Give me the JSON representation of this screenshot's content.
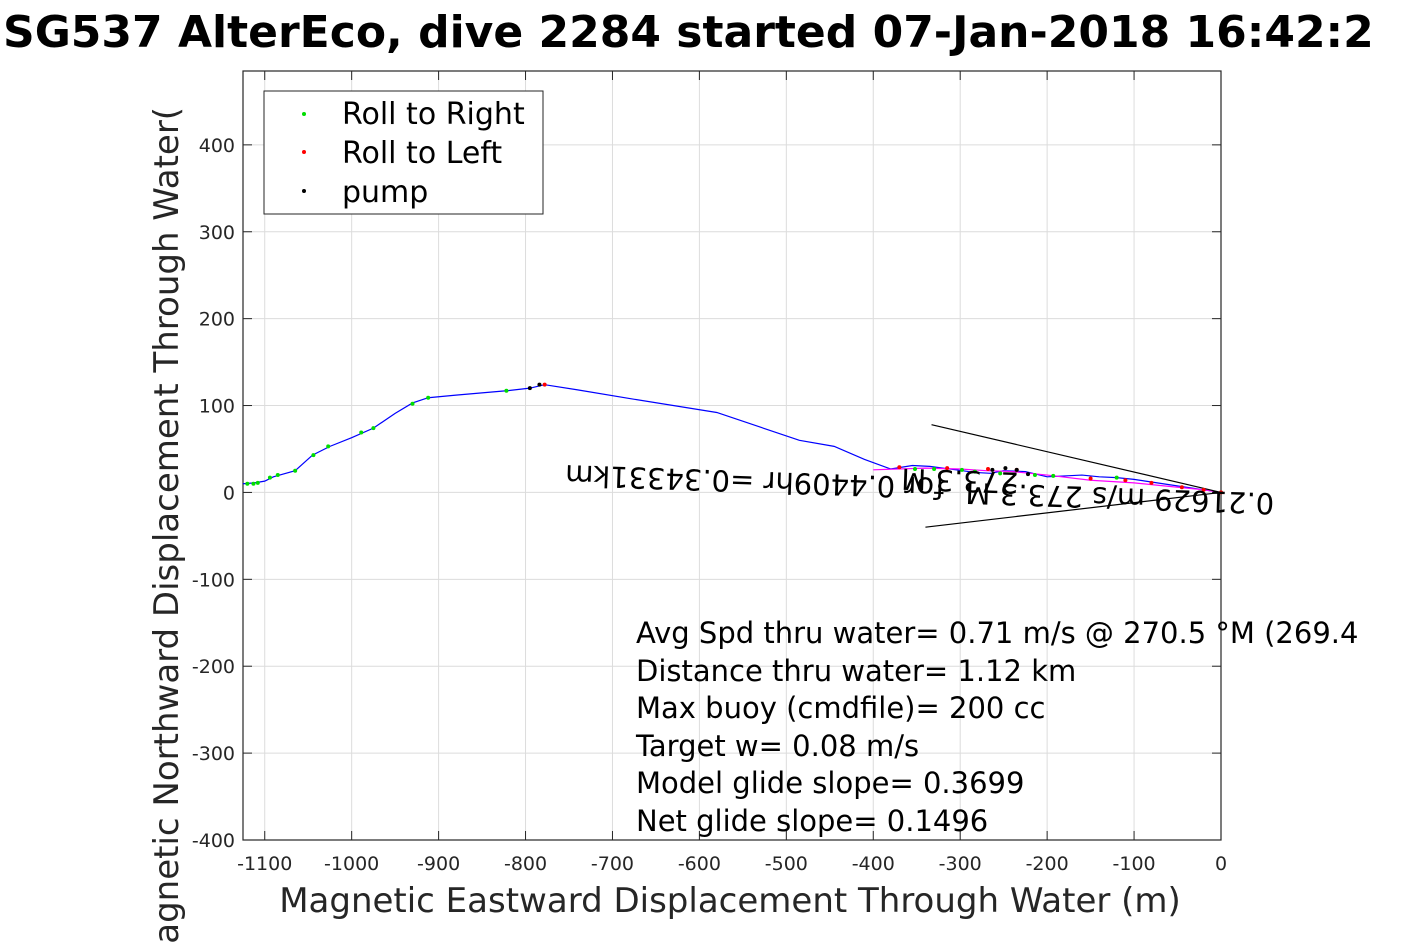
{
  "chart_data": {
    "type": "scatter",
    "title": "SG537 AlterEco, dive 2284 started 07-Jan-2018 16:42:2",
    "xlabel": "Magnetic Eastward Displacement Through Water (m)",
    "ylabel": "Magnetic Northward Displacement Through Water(",
    "xlim": [
      -1125,
      0
    ],
    "ylim": [
      -400,
      485
    ],
    "xticks": [
      -1100,
      -1000,
      -900,
      -800,
      -700,
      -600,
      -500,
      -400,
      -300,
      -200,
      -100,
      0
    ],
    "yticks": [
      -400,
      -300,
      -200,
      -100,
      0,
      100,
      200,
      300,
      400
    ],
    "xtick_labels": [
      "-1100",
      "-1000",
      "-900",
      "-800",
      "-700",
      "-600",
      "-500",
      "-400",
      "-300",
      "-200",
      "-100",
      "0"
    ],
    "ytick_labels": [
      "-400",
      "-300",
      "-200",
      "-100",
      "0",
      "100",
      "200",
      "300",
      "400"
    ],
    "grid": true,
    "legend_position": "top-left",
    "colors": {
      "track": "#0000ff",
      "roll_right": "#00dd00",
      "roll_left": "#ff0000",
      "pump": "#000000",
      "current": "#000000",
      "current_track": "#ff00ff"
    },
    "series": [
      {
        "name": "Roll to Right",
        "marker_color": "#00dd00",
        "x": [
          -1120,
          -1113,
          -1108,
          -1094,
          -1085,
          -1065,
          -1044,
          -1027,
          -989,
          -975,
          -930,
          -912,
          -822,
          -352,
          -330,
          -298,
          -283,
          -254,
          -214,
          -193,
          -120
        ],
        "y": [
          10,
          10,
          11,
          17,
          20,
          25,
          43,
          53,
          69,
          74,
          102,
          109,
          117,
          27,
          27,
          26,
          24,
          22,
          20,
          19,
          17
        ]
      },
      {
        "name": "Roll to Left",
        "marker_color": "#ff0000",
        "x": [
          -778,
          -370,
          -315,
          -268,
          -235,
          -150,
          -110,
          -80,
          -45,
          -20,
          0
        ],
        "y": [
          124,
          29,
          28,
          27,
          26,
          16,
          14,
          11,
          6,
          3,
          0
        ]
      },
      {
        "name": "pump",
        "marker_color": "#000000",
        "x": [
          -795,
          -784,
          -263,
          -248,
          -235,
          -222
        ],
        "y": [
          120,
          124,
          26,
          28,
          26,
          21
        ]
      },
      {
        "name": "",
        "line_color": "#0000ff",
        "x": [
          -1125,
          -1112,
          -1100,
          -1090,
          -1065,
          -1045,
          -1025,
          -1000,
          -975,
          -950,
          -930,
          -912,
          -880,
          -822,
          -795,
          -778,
          -740,
          -680,
          -580,
          -485,
          -445,
          -410,
          -380,
          -355,
          -335,
          -305,
          -283,
          -265,
          -250,
          -225,
          -200,
          -180,
          -160,
          -140,
          -120,
          -100,
          -80,
          -60,
          -40,
          -20,
          0
        ],
        "y": [
          10,
          11,
          13,
          18,
          25,
          43,
          53,
          63,
          74,
          91,
          103,
          109,
          112,
          117,
          120,
          124,
          118,
          108,
          92,
          60,
          53,
          38,
          27,
          31,
          30,
          26,
          23,
          22,
          25,
          24,
          18,
          19,
          20,
          18,
          17,
          15,
          12,
          9,
          6,
          3,
          0
        ]
      },
      {
        "name": "",
        "line_color": "#ff00ff",
        "x": [
          -400,
          -340,
          -300,
          -270,
          -240,
          -200,
          -150,
          -100,
          -60,
          -20,
          0
        ],
        "y": [
          26,
          28,
          27,
          25,
          24,
          20,
          14,
          11,
          7,
          3,
          0
        ]
      }
    ],
    "current_arrows": [
      {
        "x": [
          0,
          -333
        ],
        "y": [
          0,
          78
        ]
      },
      {
        "x": [
          0,
          -340
        ],
        "y": [
          0,
          -40
        ]
      }
    ],
    "flipped_annotations": [
      {
        "text": "0.21629 m/s 273.3 M",
        "x": -116,
        "y": 5
      },
      {
        "text": "273.3 M",
        "x": -300,
        "y": 25
      },
      {
        "text": "for 0.4409hr =0.34331km",
        "x": -536,
        "y": 24
      }
    ],
    "legend": [
      "Roll to Right",
      "Roll to Left",
      "pump"
    ],
    "annotations": [
      "Avg Spd thru water=  0.71 m/s @ 270.5 °M (269.4",
      "Distance thru water=  1.12 km",
      "Max buoy (cmdfile)= 200 cc",
      "Target w= 0.08 m/s",
      "Model glide slope= 0.3699",
      "Net glide slope= 0.1496"
    ]
  }
}
